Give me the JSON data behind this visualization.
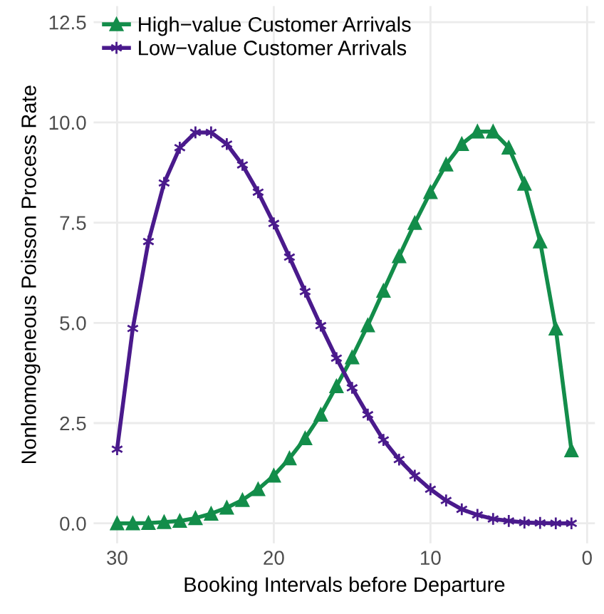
{
  "chart_data": {
    "type": "line",
    "xlabel": "Booking Intervals before Departure",
    "ylabel": "Nonhomogeneous Poisson Process Rate",
    "x": [
      30,
      29,
      28,
      27,
      26,
      25,
      24,
      23,
      22,
      21,
      20,
      19,
      18,
      17,
      16,
      15,
      14,
      13,
      12,
      11,
      10,
      9,
      8,
      7,
      6,
      5,
      4,
      3,
      2,
      1
    ],
    "series": [
      {
        "name": "High−value Customer Arrivals",
        "color": "#138d4a",
        "marker": "triangle",
        "values": [
          0.0,
          0.0,
          0.01,
          0.03,
          0.06,
          0.13,
          0.24,
          0.39,
          0.58,
          0.85,
          1.19,
          1.62,
          2.12,
          2.71,
          3.42,
          4.14,
          4.94,
          5.8,
          6.66,
          7.49,
          8.26,
          8.95,
          9.46,
          9.77,
          9.77,
          9.37,
          8.47,
          7.03,
          4.86,
          1.82
        ]
      },
      {
        "name": "Low−value Customer Arrivals",
        "color": "#4a1a8c",
        "marker": "cross",
        "values": [
          1.85,
          4.86,
          7.03,
          8.49,
          9.37,
          9.75,
          9.75,
          9.46,
          8.94,
          8.26,
          7.48,
          6.64,
          5.78,
          4.93,
          4.12,
          3.38,
          2.71,
          2.08,
          1.59,
          1.19,
          0.85,
          0.57,
          0.35,
          0.21,
          0.11,
          0.06,
          0.02,
          0.01,
          0.0,
          0.0
        ]
      }
    ],
    "xlim": [
      31.5,
      -0.5
    ],
    "xticks": [
      30,
      20,
      10,
      0
    ],
    "ylim": [
      -0.5,
      12.9
    ],
    "yticks": [
      {
        "value": 0,
        "label": "0.0"
      },
      {
        "value": 2.5,
        "label": "2.5"
      },
      {
        "value": 5,
        "label": "5.0"
      },
      {
        "value": 7.5,
        "label": "7.5"
      },
      {
        "value": 10,
        "label": "10.0"
      },
      {
        "value": 12.5,
        "label": "12.5"
      }
    ],
    "grid": true,
    "legend": "top left",
    "line_style": "solid"
  }
}
